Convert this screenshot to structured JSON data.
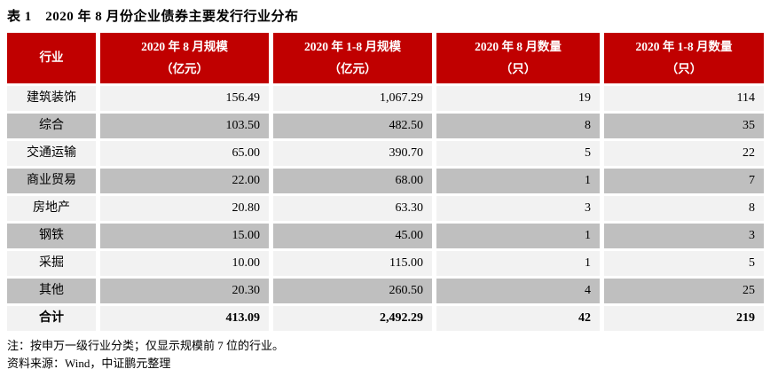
{
  "title": "表 1　2020 年 8 月份企业债券主要发行行业分布",
  "table": {
    "columns": [
      {
        "label": "行业",
        "unit": ""
      },
      {
        "label": "2020 年 8 月规模",
        "unit": "（亿元）"
      },
      {
        "label": "2020 年 1-8 月规模",
        "unit": "（亿元）"
      },
      {
        "label": "2020 年 8 月数量",
        "unit": "（只）"
      },
      {
        "label": "2020 年 1-8 月数量",
        "unit": "（只）"
      }
    ],
    "rows": [
      {
        "industry": "建筑装饰",
        "aug_scale": "156.49",
        "ytd_scale": "1,067.29",
        "aug_count": "19",
        "ytd_count": "114"
      },
      {
        "industry": "综合",
        "aug_scale": "103.50",
        "ytd_scale": "482.50",
        "aug_count": "8",
        "ytd_count": "35"
      },
      {
        "industry": "交通运输",
        "aug_scale": "65.00",
        "ytd_scale": "390.70",
        "aug_count": "5",
        "ytd_count": "22"
      },
      {
        "industry": "商业贸易",
        "aug_scale": "22.00",
        "ytd_scale": "68.00",
        "aug_count": "1",
        "ytd_count": "7"
      },
      {
        "industry": "房地产",
        "aug_scale": "20.80",
        "ytd_scale": "63.30",
        "aug_count": "3",
        "ytd_count": "8"
      },
      {
        "industry": "钢铁",
        "aug_scale": "15.00",
        "ytd_scale": "45.00",
        "aug_count": "1",
        "ytd_count": "3"
      },
      {
        "industry": "采掘",
        "aug_scale": "10.00",
        "ytd_scale": "115.00",
        "aug_count": "1",
        "ytd_count": "5"
      },
      {
        "industry": "其他",
        "aug_scale": "20.30",
        "ytd_scale": "260.50",
        "aug_count": "4",
        "ytd_count": "25"
      }
    ],
    "total_row": {
      "industry": "合计",
      "aug_scale": "413.09",
      "ytd_scale": "2,492.29",
      "aug_count": "42",
      "ytd_count": "219"
    }
  },
  "notes": {
    "note": "注：按申万一级行业分类；仅显示规模前 7 位的行业。",
    "source": "资料来源：Wind，中证鹏元整理"
  },
  "colors": {
    "header_bg": "#c00000",
    "header_fg": "#ffffff",
    "row_light": "#f2f2f2",
    "row_dark": "#bfbfbf"
  }
}
